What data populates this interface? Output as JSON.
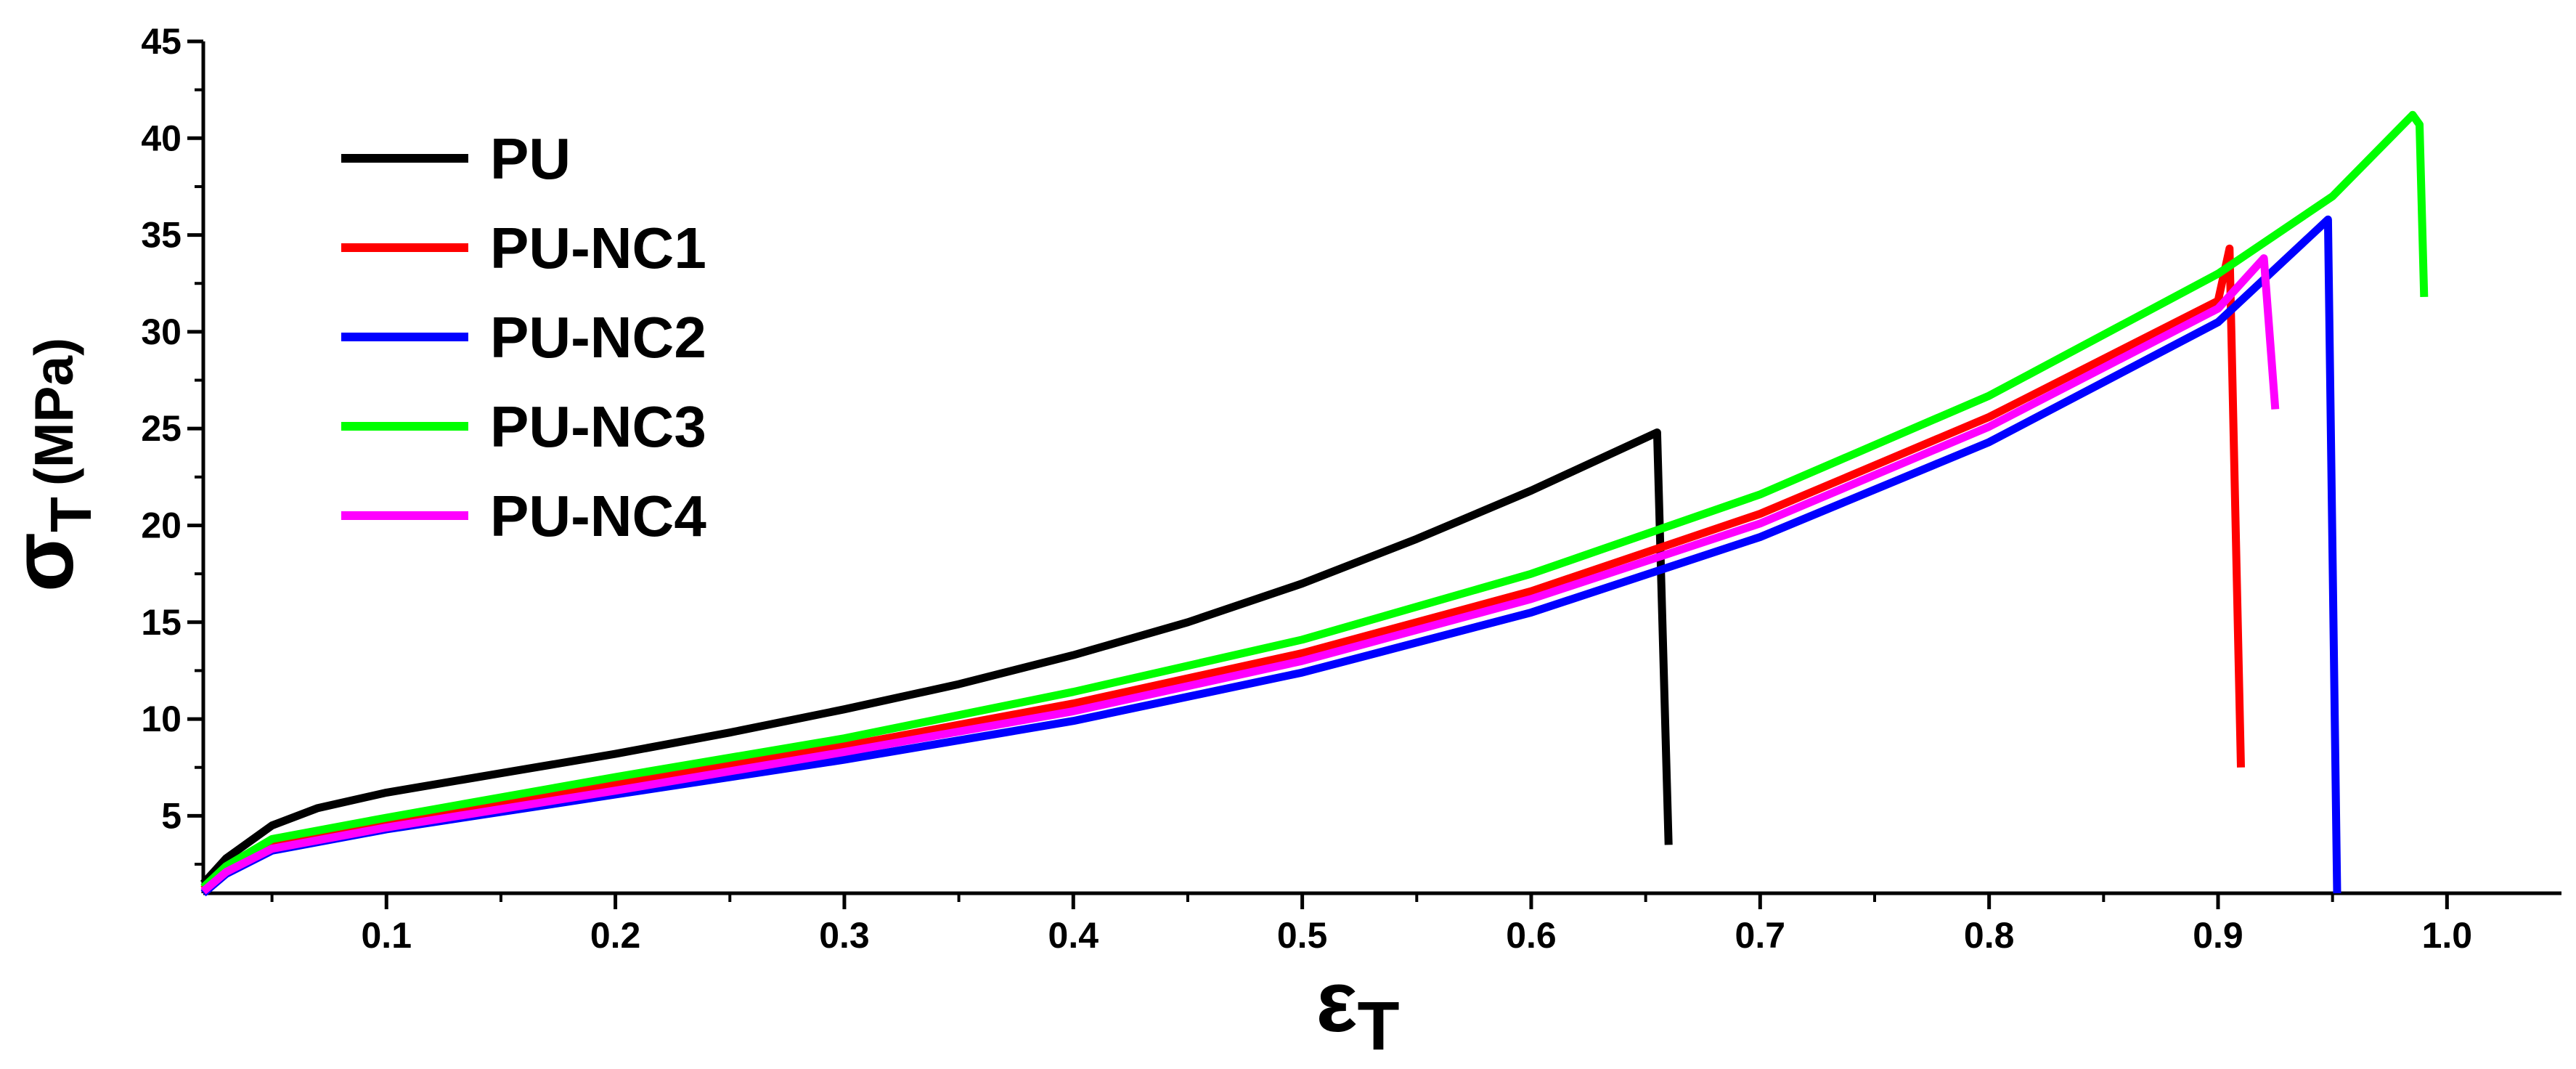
{
  "chart_data": {
    "type": "line",
    "title": "",
    "xlabel": "ε",
    "xlabel_sub": "T",
    "ylabel": "σ",
    "ylabel_sub": "T",
    "ylabel_unit": "(MPa)",
    "xlim": [
      0.02,
      1.05
    ],
    "ylim": [
      1,
      45
    ],
    "x_ticks": [
      0.1,
      0.2,
      0.3,
      0.4,
      0.5,
      0.6,
      0.7,
      0.8,
      0.9,
      1.0
    ],
    "x_tick_labels": [
      "0.1",
      "0.2",
      "0.3",
      "0.4",
      "0.5",
      "0.6",
      "0.7",
      "0.8",
      "0.9",
      "1.0"
    ],
    "y_ticks": [
      5,
      10,
      15,
      20,
      25,
      30,
      35,
      40,
      45
    ],
    "y_tick_labels": [
      "5",
      "10",
      "15",
      "20",
      "25",
      "30",
      "35",
      "40",
      "45"
    ],
    "grid": false,
    "legend_position": "top-left",
    "series": [
      {
        "name": "PU",
        "color": "#000000",
        "points": [
          [
            0.02,
            1.5
          ],
          [
            0.03,
            2.8
          ],
          [
            0.05,
            4.5
          ],
          [
            0.07,
            5.4
          ],
          [
            0.1,
            6.2
          ],
          [
            0.15,
            7.2
          ],
          [
            0.2,
            8.2
          ],
          [
            0.25,
            9.3
          ],
          [
            0.3,
            10.5
          ],
          [
            0.35,
            11.8
          ],
          [
            0.4,
            13.3
          ],
          [
            0.45,
            15.0
          ],
          [
            0.5,
            17.0
          ],
          [
            0.55,
            19.3
          ],
          [
            0.6,
            21.8
          ],
          [
            0.655,
            24.8
          ],
          [
            0.66,
            3.5
          ]
        ]
      },
      {
        "name": "PU-NC1",
        "color": "#ff0000",
        "points": [
          [
            0.02,
            1.2
          ],
          [
            0.03,
            2.2
          ],
          [
            0.05,
            3.5
          ],
          [
            0.1,
            4.6
          ],
          [
            0.2,
            6.6
          ],
          [
            0.3,
            8.6
          ],
          [
            0.4,
            10.8
          ],
          [
            0.5,
            13.4
          ],
          [
            0.6,
            16.6
          ],
          [
            0.7,
            20.6
          ],
          [
            0.8,
            25.6
          ],
          [
            0.9,
            31.6
          ],
          [
            0.905,
            34.3
          ],
          [
            0.91,
            7.5
          ]
        ]
      },
      {
        "name": "PU-NC2",
        "color": "#0000ff",
        "points": [
          [
            0.02,
            1.0
          ],
          [
            0.03,
            2.0
          ],
          [
            0.05,
            3.2
          ],
          [
            0.1,
            4.3
          ],
          [
            0.2,
            6.1
          ],
          [
            0.3,
            7.9
          ],
          [
            0.4,
            9.9
          ],
          [
            0.5,
            12.4
          ],
          [
            0.6,
            15.5
          ],
          [
            0.7,
            19.4
          ],
          [
            0.8,
            24.3
          ],
          [
            0.9,
            30.5
          ],
          [
            0.948,
            35.8
          ],
          [
            0.952,
            1.0
          ]
        ]
      },
      {
        "name": "PU-NC3",
        "color": "#00ff00",
        "points": [
          [
            0.02,
            1.3
          ],
          [
            0.03,
            2.4
          ],
          [
            0.05,
            3.8
          ],
          [
            0.1,
            4.9
          ],
          [
            0.2,
            7.0
          ],
          [
            0.3,
            9.0
          ],
          [
            0.4,
            11.4
          ],
          [
            0.5,
            14.1
          ],
          [
            0.6,
            17.5
          ],
          [
            0.7,
            21.6
          ],
          [
            0.8,
            26.7
          ],
          [
            0.9,
            33.0
          ],
          [
            0.95,
            37.0
          ],
          [
            0.985,
            41.2
          ],
          [
            0.988,
            40.7
          ],
          [
            0.99,
            31.8
          ]
        ]
      },
      {
        "name": "PU-NC4",
        "color": "#ff00ff",
        "points": [
          [
            0.02,
            1.1
          ],
          [
            0.03,
            2.1
          ],
          [
            0.05,
            3.3
          ],
          [
            0.1,
            4.4
          ],
          [
            0.2,
            6.3
          ],
          [
            0.3,
            8.3
          ],
          [
            0.4,
            10.4
          ],
          [
            0.5,
            13.0
          ],
          [
            0.6,
            16.2
          ],
          [
            0.7,
            20.1
          ],
          [
            0.8,
            25.1
          ],
          [
            0.9,
            31.2
          ],
          [
            0.92,
            33.8
          ],
          [
            0.925,
            26.0
          ]
        ]
      }
    ]
  }
}
